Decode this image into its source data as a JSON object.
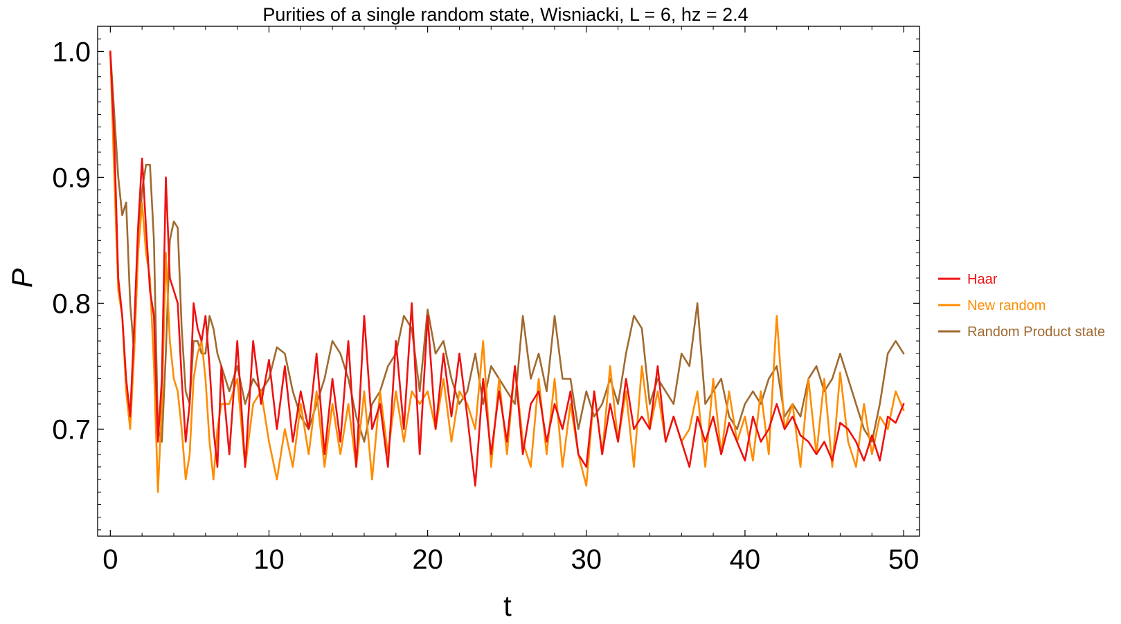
{
  "chart_data": {
    "type": "line",
    "title": "Purities of a single random state, Wisniacki, L = 6, hz = 2.4",
    "xlabel": "t",
    "ylabel": "P",
    "xlim": [
      -0.8,
      51
    ],
    "ylim": [
      0.615,
      1.02
    ],
    "xticks": [
      0,
      10,
      20,
      30,
      40,
      50
    ],
    "xtick_labels": [
      "0",
      "10",
      "20",
      "30",
      "40",
      "50"
    ],
    "yticks": [
      0.7,
      0.8,
      0.9,
      1.0
    ],
    "ytick_labels": [
      "0.7",
      "0.8",
      "0.9",
      "1.0"
    ],
    "grid": false,
    "legend_position": "right",
    "colors": {
      "haar": "#ee1111",
      "new_random": "#ff8c00",
      "product": "#a06a30"
    },
    "series": [
      {
        "name": "Haar",
        "color": "#ee1111",
        "x": [
          0,
          0.25,
          0.5,
          0.75,
          1,
          1.25,
          1.5,
          1.75,
          2,
          2.25,
          2.5,
          2.75,
          3,
          3.25,
          3.5,
          3.75,
          4,
          4.25,
          4.5,
          4.75,
          5,
          5.25,
          5.5,
          5.75,
          6,
          6.25,
          6.5,
          6.75,
          7,
          7.5,
          8,
          8.5,
          9,
          9.5,
          10,
          10.5,
          11,
          11.5,
          12,
          12.5,
          13,
          13.5,
          14,
          14.5,
          15,
          15.5,
          16,
          16.5,
          17,
          17.5,
          18,
          18.5,
          19,
          19.5,
          20,
          20.5,
          21,
          21.5,
          22,
          22.5,
          23,
          23.5,
          24,
          24.5,
          25,
          25.5,
          26,
          26.5,
          27,
          27.5,
          28,
          28.5,
          29,
          29.5,
          30,
          30.5,
          31,
          31.5,
          32,
          32.5,
          33,
          33.5,
          34,
          34.5,
          35,
          35.5,
          36,
          36.5,
          37,
          37.5,
          38,
          38.5,
          39,
          39.5,
          40,
          40.5,
          41,
          41.5,
          42,
          42.5,
          43,
          43.5,
          44,
          44.5,
          45,
          45.5,
          46,
          46.5,
          47,
          47.5,
          48,
          48.5,
          49,
          49.5,
          50
        ],
        "values": [
          1.0,
          0.93,
          0.82,
          0.79,
          0.74,
          0.71,
          0.78,
          0.86,
          0.915,
          0.86,
          0.81,
          0.79,
          0.69,
          0.74,
          0.9,
          0.82,
          0.81,
          0.8,
          0.74,
          0.69,
          0.72,
          0.8,
          0.78,
          0.77,
          0.79,
          0.75,
          0.7,
          0.67,
          0.75,
          0.68,
          0.77,
          0.67,
          0.77,
          0.72,
          0.755,
          0.7,
          0.75,
          0.69,
          0.73,
          0.7,
          0.76,
          0.68,
          0.74,
          0.69,
          0.77,
          0.67,
          0.79,
          0.7,
          0.72,
          0.67,
          0.77,
          0.7,
          0.8,
          0.68,
          0.79,
          0.7,
          0.76,
          0.71,
          0.76,
          0.71,
          0.655,
          0.74,
          0.68,
          0.73,
          0.69,
          0.75,
          0.68,
          0.72,
          0.73,
          0.69,
          0.72,
          0.7,
          0.73,
          0.68,
          0.67,
          0.73,
          0.68,
          0.72,
          0.69,
          0.74,
          0.7,
          0.71,
          0.7,
          0.75,
          0.69,
          0.71,
          0.69,
          0.67,
          0.71,
          0.69,
          0.71,
          0.68,
          0.705,
          0.69,
          0.675,
          0.71,
          0.69,
          0.7,
          0.72,
          0.7,
          0.71,
          0.695,
          0.69,
          0.68,
          0.69,
          0.675,
          0.705,
          0.7,
          0.69,
          0.675,
          0.695,
          0.675,
          0.71,
          0.705,
          0.72
        ]
      },
      {
        "name": "New random",
        "color": "#ff8c00",
        "x": [
          0,
          0.25,
          0.5,
          0.75,
          1,
          1.25,
          1.5,
          1.75,
          2,
          2.25,
          2.5,
          2.75,
          3,
          3.25,
          3.5,
          3.75,
          4,
          4.25,
          4.5,
          4.75,
          5,
          5.25,
          5.5,
          5.75,
          6,
          6.25,
          6.5,
          6.75,
          7,
          7.5,
          8,
          8.5,
          9,
          9.5,
          10,
          10.5,
          11,
          11.5,
          12,
          12.5,
          13,
          13.5,
          14,
          14.5,
          15,
          15.5,
          16,
          16.5,
          17,
          17.5,
          18,
          18.5,
          19,
          19.5,
          20,
          20.5,
          21,
          21.5,
          22,
          22.5,
          23,
          23.5,
          24,
          24.5,
          25,
          25.5,
          26,
          26.5,
          27,
          27.5,
          28,
          28.5,
          29,
          29.5,
          30,
          30.5,
          31,
          31.5,
          32,
          32.5,
          33,
          33.5,
          34,
          34.5,
          35,
          35.5,
          36,
          36.5,
          37,
          37.5,
          38,
          38.5,
          39,
          39.5,
          40,
          40.5,
          41,
          41.5,
          42,
          42.5,
          43,
          43.5,
          44,
          44.5,
          45,
          45.5,
          46,
          46.5,
          47,
          47.5,
          48,
          48.5,
          49,
          49.5,
          50
        ],
        "values": [
          1.0,
          0.9,
          0.81,
          0.79,
          0.73,
          0.7,
          0.76,
          0.84,
          0.88,
          0.84,
          0.82,
          0.75,
          0.65,
          0.72,
          0.84,
          0.77,
          0.74,
          0.73,
          0.7,
          0.66,
          0.68,
          0.74,
          0.76,
          0.77,
          0.74,
          0.69,
          0.66,
          0.7,
          0.72,
          0.72,
          0.74,
          0.67,
          0.72,
          0.73,
          0.69,
          0.66,
          0.7,
          0.67,
          0.72,
          0.68,
          0.73,
          0.67,
          0.72,
          0.68,
          0.72,
          0.67,
          0.73,
          0.66,
          0.73,
          0.68,
          0.73,
          0.69,
          0.73,
          0.72,
          0.73,
          0.7,
          0.74,
          0.69,
          0.73,
          0.72,
          0.7,
          0.77,
          0.67,
          0.74,
          0.68,
          0.75,
          0.69,
          0.67,
          0.74,
          0.68,
          0.74,
          0.67,
          0.72,
          0.68,
          0.655,
          0.73,
          0.68,
          0.75,
          0.69,
          0.73,
          0.67,
          0.75,
          0.7,
          0.73,
          0.69,
          0.71,
          0.69,
          0.7,
          0.73,
          0.67,
          0.74,
          0.68,
          0.73,
          0.69,
          0.71,
          0.675,
          0.73,
          0.68,
          0.79,
          0.7,
          0.72,
          0.67,
          0.74,
          0.68,
          0.74,
          0.67,
          0.745,
          0.69,
          0.67,
          0.72,
          0.68,
          0.71,
          0.7,
          0.73,
          0.715
        ]
      },
      {
        "name": "Random Product state",
        "color": "#a06a30",
        "x": [
          0,
          0.25,
          0.5,
          0.75,
          1,
          1.25,
          1.5,
          1.75,
          2,
          2.25,
          2.5,
          2.75,
          3,
          3.25,
          3.5,
          3.75,
          4,
          4.25,
          4.5,
          4.75,
          5,
          5.25,
          5.5,
          5.75,
          6,
          6.25,
          6.5,
          6.75,
          7,
          7.5,
          8,
          8.5,
          9,
          9.5,
          10,
          10.5,
          11,
          11.5,
          12,
          12.5,
          13,
          13.5,
          14,
          14.5,
          15,
          15.5,
          16,
          16.5,
          17,
          17.5,
          18,
          18.5,
          19,
          19.5,
          20,
          20.5,
          21,
          21.5,
          22,
          22.5,
          23,
          23.5,
          24,
          24.5,
          25,
          25.5,
          26,
          26.5,
          27,
          27.5,
          28,
          28.5,
          29,
          29.5,
          30,
          30.5,
          31,
          31.5,
          32,
          32.5,
          33,
          33.5,
          34,
          34.5,
          35,
          35.5,
          36,
          36.5,
          37,
          37.5,
          38,
          38.5,
          39,
          39.5,
          40,
          40.5,
          41,
          41.5,
          42,
          42.5,
          43,
          43.5,
          44,
          44.5,
          45,
          45.5,
          46,
          46.5,
          47,
          47.5,
          48,
          48.5,
          49,
          49.5,
          50
        ],
        "values": [
          1.0,
          0.95,
          0.9,
          0.87,
          0.88,
          0.8,
          0.76,
          0.84,
          0.89,
          0.91,
          0.91,
          0.85,
          0.7,
          0.69,
          0.76,
          0.85,
          0.865,
          0.86,
          0.78,
          0.73,
          0.72,
          0.77,
          0.77,
          0.76,
          0.76,
          0.79,
          0.78,
          0.76,
          0.75,
          0.73,
          0.75,
          0.72,
          0.74,
          0.73,
          0.74,
          0.765,
          0.76,
          0.73,
          0.71,
          0.7,
          0.72,
          0.74,
          0.77,
          0.76,
          0.74,
          0.71,
          0.69,
          0.72,
          0.73,
          0.75,
          0.76,
          0.79,
          0.78,
          0.73,
          0.795,
          0.76,
          0.77,
          0.74,
          0.72,
          0.73,
          0.76,
          0.72,
          0.75,
          0.74,
          0.73,
          0.72,
          0.79,
          0.74,
          0.76,
          0.73,
          0.79,
          0.74,
          0.74,
          0.7,
          0.73,
          0.71,
          0.72,
          0.74,
          0.72,
          0.76,
          0.79,
          0.78,
          0.72,
          0.74,
          0.73,
          0.72,
          0.76,
          0.75,
          0.8,
          0.72,
          0.73,
          0.74,
          0.71,
          0.7,
          0.72,
          0.73,
          0.72,
          0.74,
          0.75,
          0.71,
          0.72,
          0.71,
          0.74,
          0.75,
          0.73,
          0.74,
          0.76,
          0.74,
          0.72,
          0.7,
          0.69,
          0.72,
          0.76,
          0.77,
          0.76
        ]
      }
    ]
  }
}
